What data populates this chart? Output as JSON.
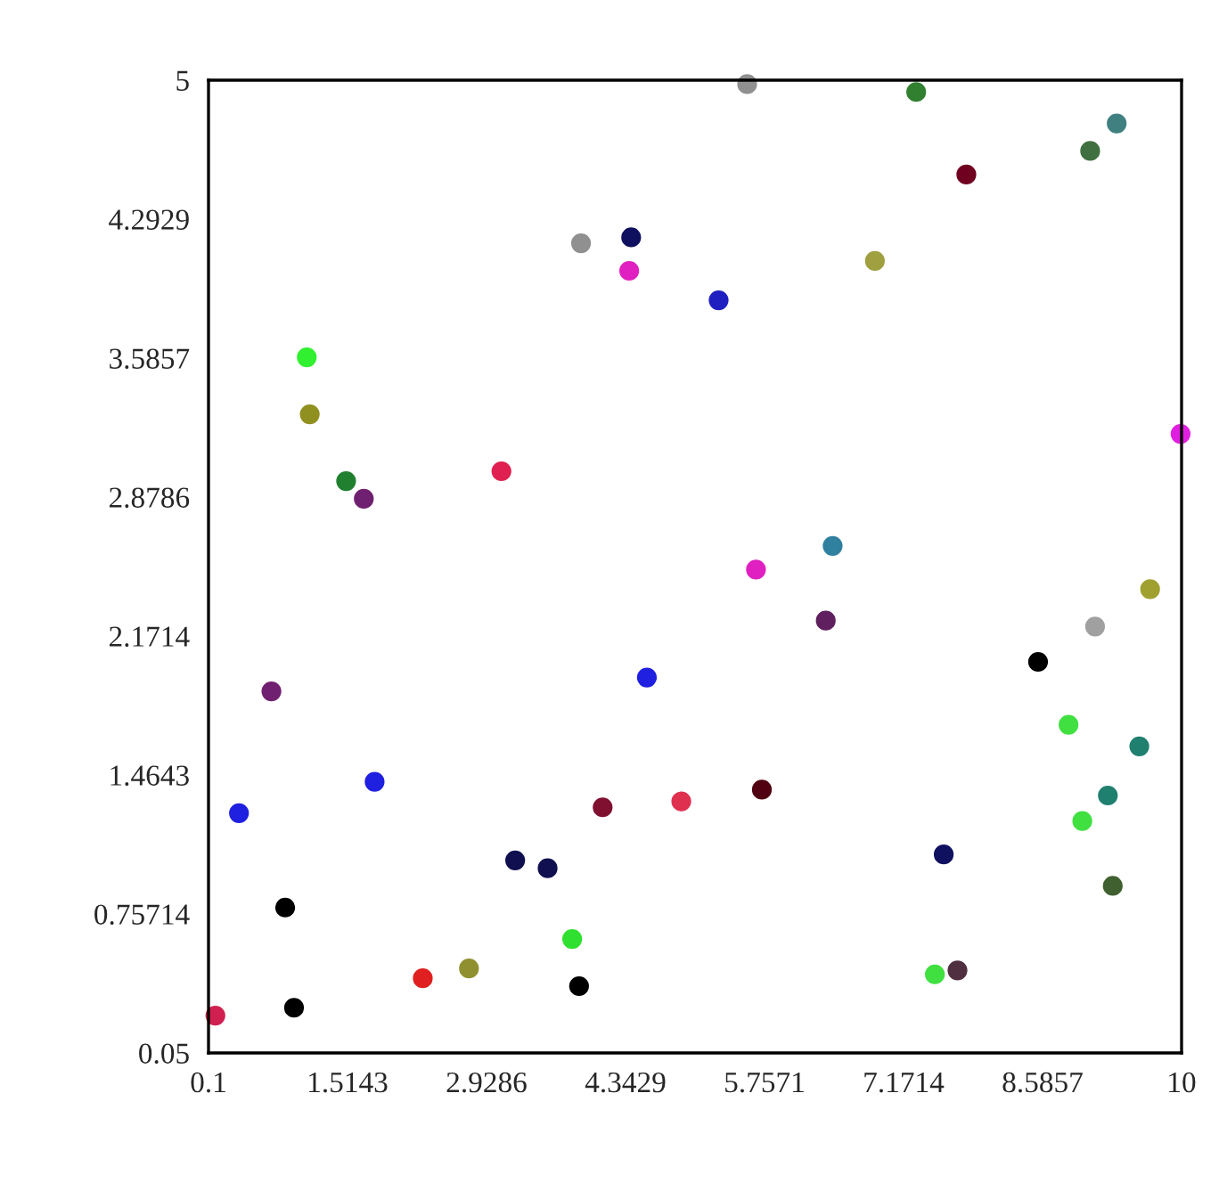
{
  "chart_data": {
    "type": "scatter",
    "marker": "circle",
    "grid": false,
    "xlim": [
      0.1,
      10
    ],
    "ylim": [
      0.05,
      5
    ],
    "xticks": [
      0.1,
      1.5143,
      2.9286,
      4.3429,
      5.7571,
      7.1714,
      8.5857,
      10
    ],
    "yticks": [
      0.05,
      0.75714,
      1.4643,
      2.1714,
      2.8786,
      3.5857,
      4.2929,
      5
    ],
    "x": [
      0.17,
      0.97,
      0.88,
      0.41,
      0.74,
      1.79,
      1.1,
      1.13,
      1.5,
      1.68,
      3.08,
      2.28,
      2.75,
      3.22,
      3.55,
      3.8,
      3.87,
      4.11,
      4.91,
      4.56,
      3.89,
      4.4,
      4.38,
      5.29,
      5.58,
      5.67,
      5.73,
      6.38,
      6.45,
      6.88,
      7.3,
      7.81,
      9.07,
      9.34,
      9.99,
      7.58,
      7.72,
      7.49,
      8.54,
      9.12,
      9.68,
      8.85,
      9.57,
      9.25,
      8.99,
      9.3
    ],
    "values": [
      0.24,
      0.28,
      0.79,
      1.27,
      1.89,
      1.43,
      3.59,
      3.3,
      2.96,
      2.87,
      3.01,
      0.43,
      0.48,
      1.03,
      0.99,
      0.63,
      0.39,
      1.3,
      1.33,
      1.96,
      4.17,
      4.2,
      4.03,
      3.88,
      4.98,
      2.51,
      1.39,
      2.25,
      2.63,
      4.08,
      4.94,
      4.52,
      4.64,
      4.78,
      3.2,
      1.06,
      0.47,
      0.45,
      2.04,
      2.22,
      2.41,
      1.72,
      1.61,
      1.36,
      1.23,
      0.9
    ],
    "colors": [
      "#d02050",
      "#000000",
      "#000000",
      "#2020e0",
      "#702070",
      "#2020e0",
      "#30f030",
      "#909020",
      "#208030",
      "#702070",
      "#e02050",
      "#e02020",
      "#909030",
      "#101050",
      "#101050",
      "#30e030",
      "#000000",
      "#801030",
      "#e03050",
      "#2020e0",
      "#909090",
      "#101060",
      "#e020c0",
      "#2020c0",
      "#909090",
      "#e020c0",
      "#500010",
      "#602060",
      "#3080a0",
      "#a0a040",
      "#308030",
      "#700020",
      "#407040",
      "#408080",
      "#e020e0",
      "#101060",
      "#503040",
      "#40e040",
      "#000000",
      "#a0a0a0",
      "#a0a030",
      "#40e040",
      "#208070",
      "#208070",
      "#40e040",
      "#406030"
    ]
  }
}
